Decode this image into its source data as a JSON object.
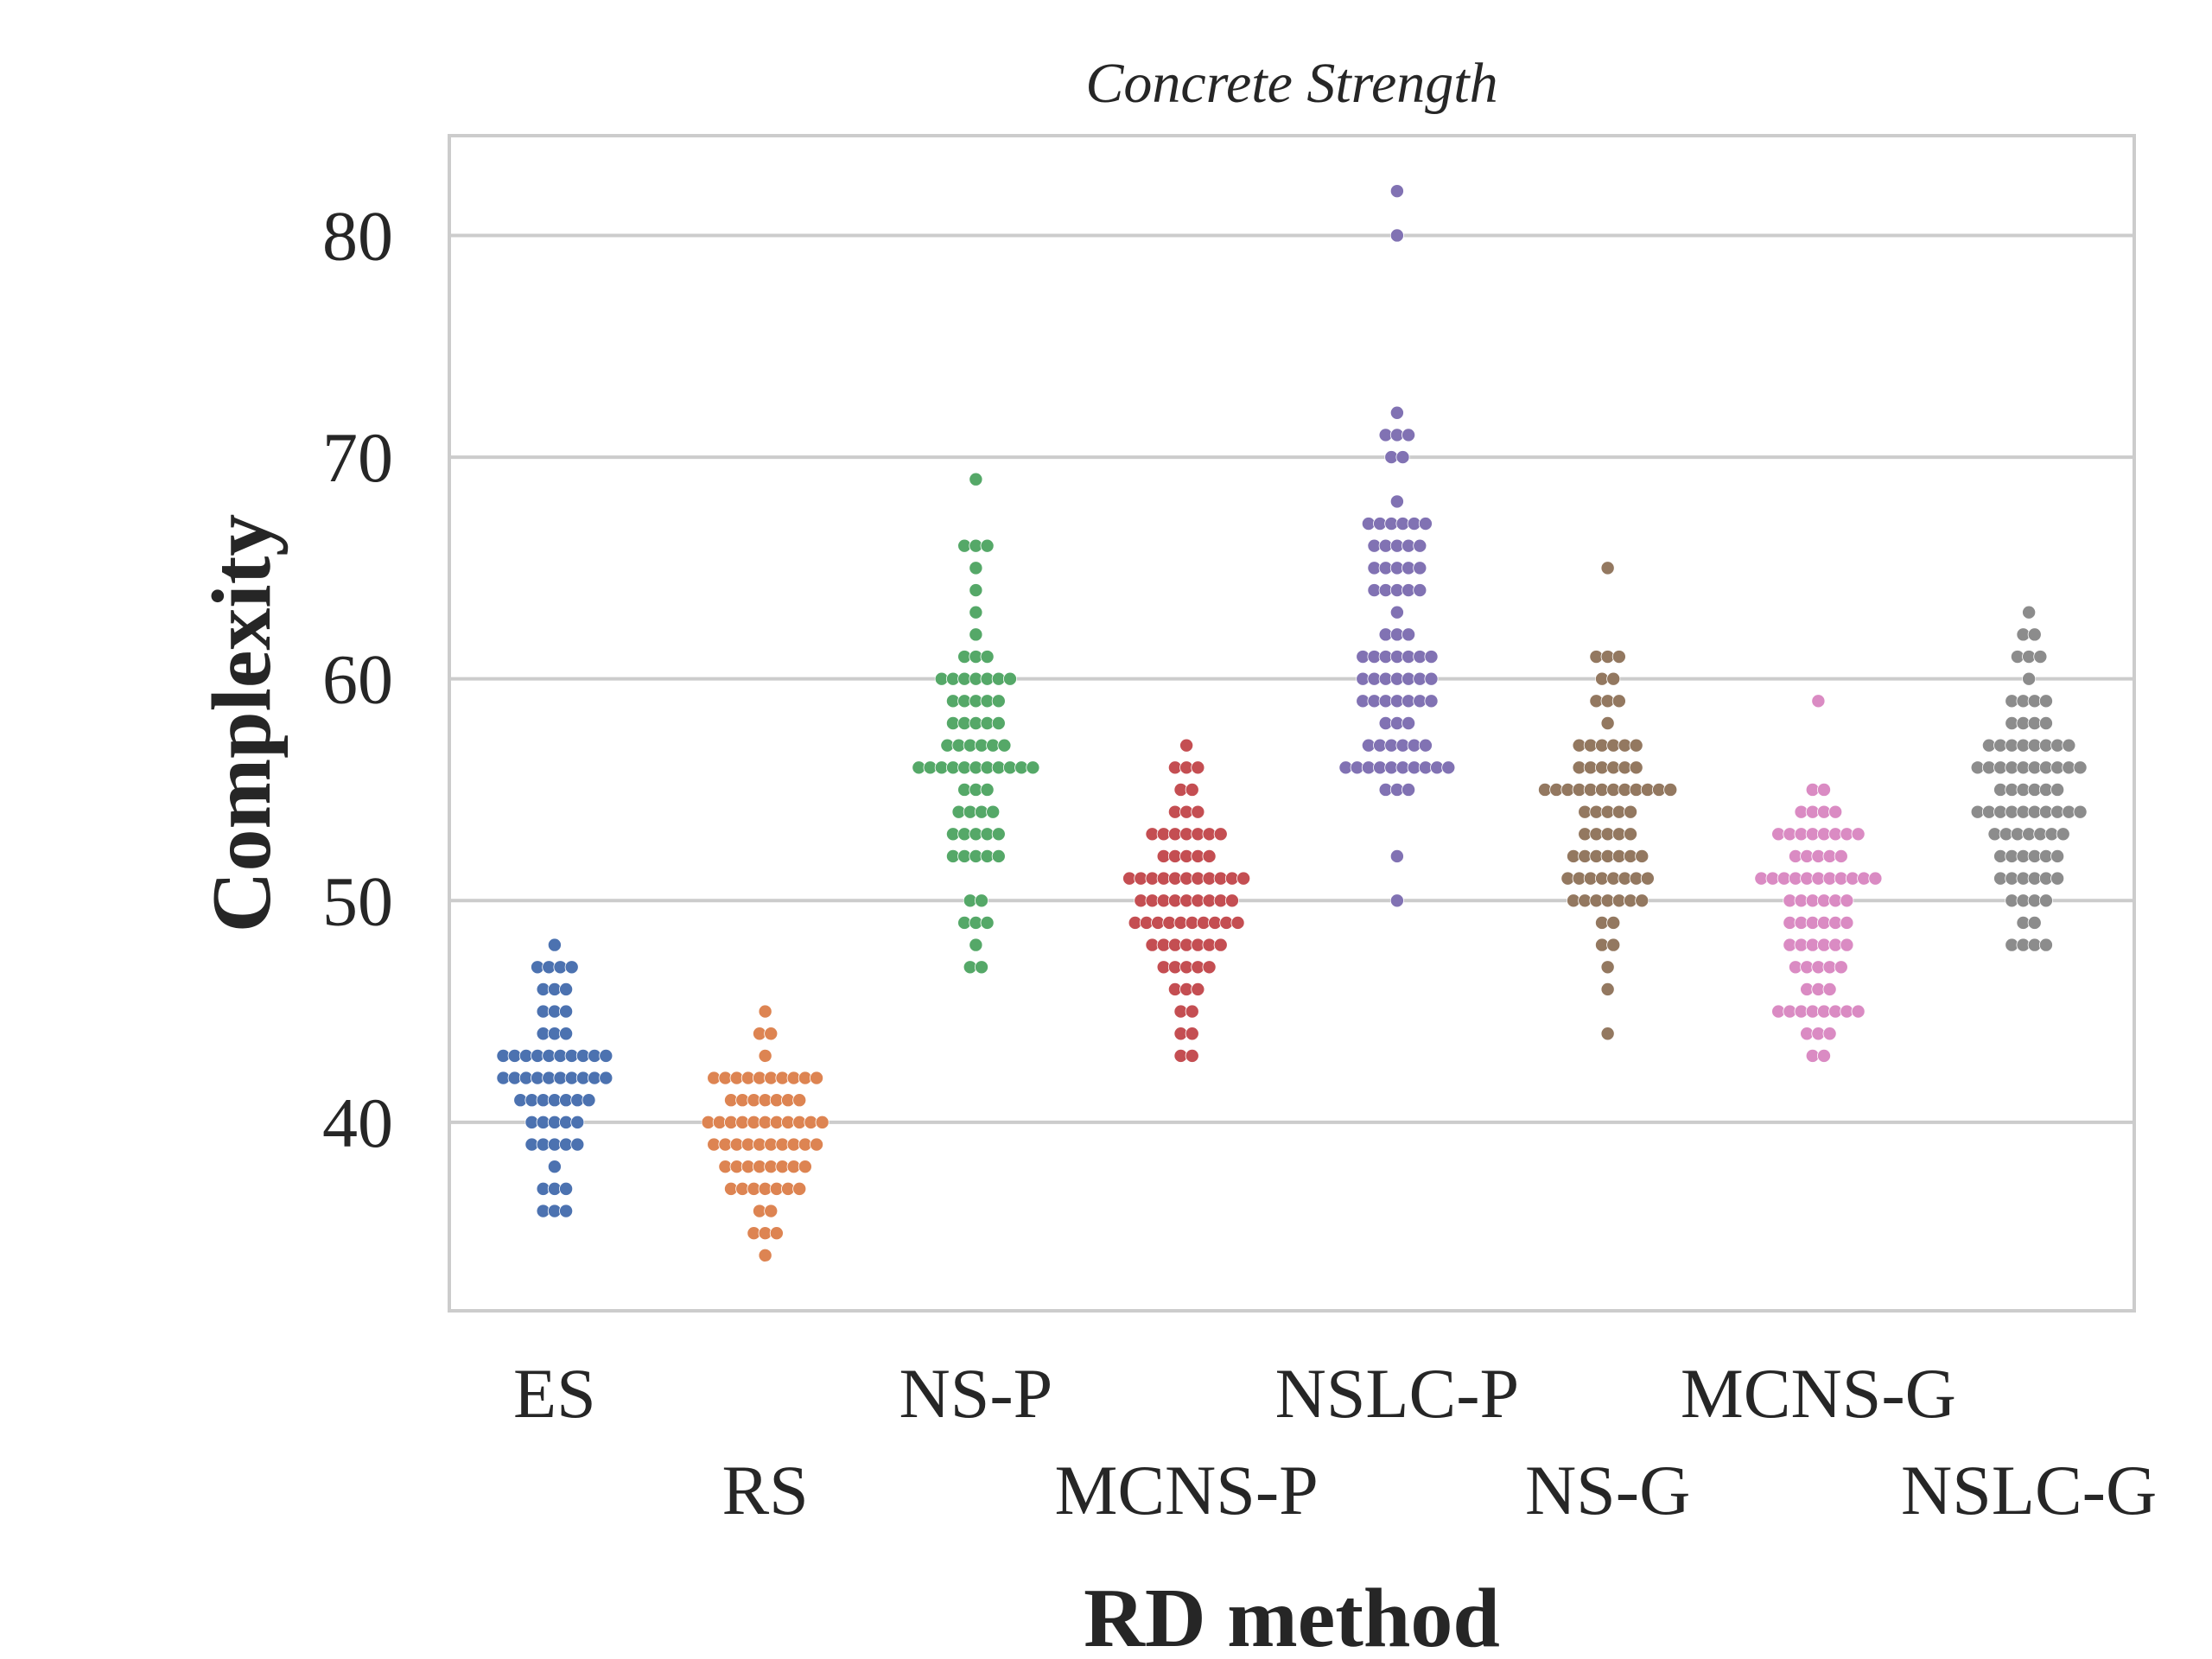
{
  "chart_data": {
    "type": "scatter",
    "subtype": "swarm",
    "title": "Concrete Strength",
    "xlabel": "RD method",
    "ylabel": "Complexity",
    "ylim": [
      31.5,
      84.5
    ],
    "yticks": [
      40,
      50,
      60,
      70,
      80
    ],
    "grid": true,
    "categories": [
      "ES",
      "RS",
      "NS-P",
      "MCNS-P",
      "NSLC-P",
      "NS-G",
      "MCNS-G",
      "NSLC-G"
    ],
    "series": [
      {
        "category": "ES",
        "color": "#4c72b0",
        "values": [
          36,
          36,
          36,
          37,
          37,
          37,
          38,
          39,
          39,
          39,
          39,
          39,
          40,
          40,
          40,
          40,
          40,
          41,
          41,
          41,
          41,
          41,
          41,
          41,
          42,
          42,
          42,
          42,
          42,
          42,
          42,
          42,
          42,
          42,
          43,
          43,
          43,
          43,
          43,
          43,
          43,
          43,
          43,
          43,
          44,
          44,
          44,
          45,
          45,
          45,
          46,
          46,
          46,
          47,
          47,
          47,
          47,
          48
        ]
      },
      {
        "category": "RS",
        "color": "#dd8452",
        "values": [
          34,
          35,
          35,
          35,
          36,
          36,
          37,
          37,
          37,
          37,
          37,
          37,
          37,
          38,
          38,
          38,
          38,
          38,
          38,
          38,
          38,
          39,
          39,
          39,
          39,
          39,
          39,
          39,
          39,
          39,
          39,
          40,
          40,
          40,
          40,
          40,
          40,
          40,
          40,
          40,
          40,
          40,
          41,
          41,
          41,
          41,
          41,
          41,
          41,
          42,
          42,
          42,
          42,
          42,
          42,
          42,
          42,
          42,
          42,
          43,
          44,
          44,
          45
        ]
      },
      {
        "category": "NS-P",
        "color": "#55a868",
        "values": [
          47,
          47,
          48,
          49,
          49,
          49,
          50,
          50,
          52,
          52,
          52,
          52,
          52,
          53,
          53,
          53,
          53,
          53,
          54,
          54,
          54,
          54,
          55,
          55,
          55,
          56,
          56,
          56,
          56,
          56,
          56,
          56,
          56,
          56,
          56,
          56,
          57,
          57,
          57,
          57,
          57,
          57,
          58,
          58,
          58,
          58,
          58,
          59,
          59,
          59,
          59,
          59,
          60,
          60,
          60,
          60,
          60,
          60,
          60,
          61,
          61,
          61,
          62,
          63,
          64,
          65,
          66,
          66,
          66,
          69
        ]
      },
      {
        "category": "MCNS-P",
        "color": "#c44e52",
        "values": [
          43,
          43,
          44,
          44,
          45,
          45,
          46,
          46,
          46,
          47,
          47,
          47,
          47,
          47,
          48,
          48,
          48,
          48,
          48,
          48,
          48,
          49,
          49,
          49,
          49,
          49,
          49,
          49,
          49,
          49,
          49,
          50,
          50,
          50,
          50,
          50,
          50,
          50,
          50,
          50,
          51,
          51,
          51,
          51,
          51,
          51,
          51,
          51,
          51,
          51,
          51,
          52,
          52,
          52,
          52,
          52,
          53,
          53,
          53,
          53,
          53,
          53,
          53,
          54,
          54,
          54,
          55,
          55,
          56,
          56,
          56,
          57
        ]
      },
      {
        "category": "NSLC-P",
        "color": "#8172b3",
        "values": [
          50,
          52,
          55,
          55,
          55,
          56,
          56,
          56,
          56,
          56,
          56,
          56,
          56,
          56,
          56,
          57,
          57,
          57,
          57,
          57,
          57,
          58,
          58,
          58,
          59,
          59,
          59,
          59,
          59,
          59,
          59,
          60,
          60,
          60,
          60,
          60,
          60,
          60,
          61,
          61,
          61,
          61,
          61,
          61,
          61,
          62,
          62,
          62,
          63,
          64,
          64,
          64,
          64,
          64,
          65,
          65,
          65,
          65,
          65,
          66,
          66,
          66,
          66,
          66,
          67,
          67,
          67,
          67,
          67,
          67,
          68,
          70,
          70,
          71,
          71,
          71,
          72,
          80,
          82
        ]
      },
      {
        "category": "NS-G",
        "color": "#937860",
        "values": [
          44,
          46,
          47,
          48,
          48,
          49,
          49,
          50,
          50,
          50,
          50,
          50,
          50,
          50,
          51,
          51,
          51,
          51,
          51,
          51,
          51,
          51,
          52,
          52,
          52,
          52,
          52,
          52,
          52,
          53,
          53,
          53,
          53,
          53,
          54,
          54,
          54,
          54,
          54,
          55,
          55,
          55,
          55,
          55,
          55,
          55,
          55,
          55,
          55,
          55,
          55,
          56,
          56,
          56,
          56,
          56,
          56,
          57,
          57,
          57,
          57,
          57,
          57,
          58,
          59,
          59,
          59,
          60,
          60,
          61,
          61,
          61,
          65
        ]
      },
      {
        "category": "MCNS-G",
        "color": "#da8bc3",
        "values": [
          43,
          43,
          44,
          44,
          44,
          45,
          45,
          45,
          45,
          45,
          45,
          45,
          45,
          46,
          46,
          46,
          47,
          47,
          47,
          47,
          47,
          48,
          48,
          48,
          48,
          48,
          48,
          49,
          49,
          49,
          49,
          49,
          49,
          50,
          50,
          50,
          50,
          50,
          50,
          51,
          51,
          51,
          51,
          51,
          51,
          51,
          51,
          51,
          51,
          51,
          52,
          52,
          52,
          52,
          52,
          53,
          53,
          53,
          53,
          53,
          53,
          53,
          53,
          54,
          54,
          54,
          54,
          55,
          55,
          59
        ]
      },
      {
        "category": "NSLC-G",
        "color": "#8c8c8c",
        "values": [
          48,
          48,
          48,
          48,
          49,
          49,
          50,
          50,
          50,
          50,
          51,
          51,
          51,
          51,
          51,
          51,
          52,
          52,
          52,
          52,
          52,
          52,
          53,
          53,
          53,
          53,
          53,
          53,
          53,
          54,
          54,
          54,
          54,
          54,
          54,
          54,
          54,
          54,
          54,
          55,
          55,
          55,
          55,
          55,
          55,
          56,
          56,
          56,
          56,
          56,
          56,
          56,
          56,
          56,
          56,
          57,
          57,
          57,
          57,
          57,
          57,
          57,
          57,
          58,
          58,
          58,
          58,
          59,
          59,
          59,
          59,
          60,
          61,
          61,
          61,
          62,
          62,
          63
        ]
      }
    ]
  }
}
